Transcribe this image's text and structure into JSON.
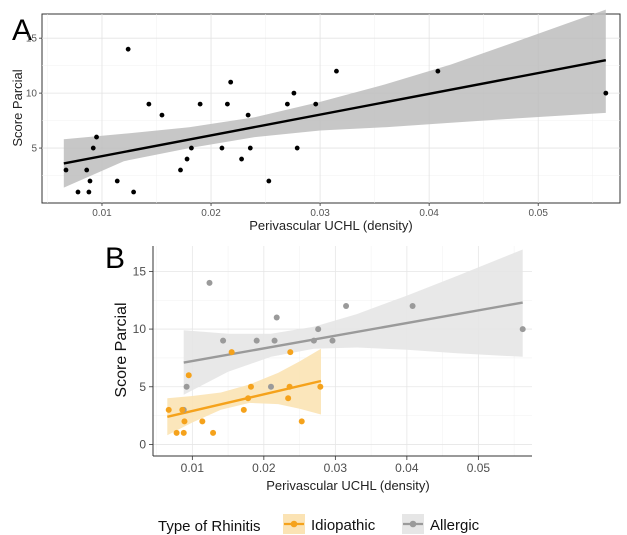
{
  "chart_data": [
    {
      "panel": "A",
      "type": "scatter",
      "panel_label": "A",
      "xlabel": "Perivascular UCHL (density)",
      "ylabel": "Score Parcial",
      "xlim": [
        0.0045,
        0.0575
      ],
      "ylim": [
        0,
        17.2
      ],
      "x_ticks": [
        0.01,
        0.02,
        0.03,
        0.04,
        0.05
      ],
      "x_tick_labels": [
        "0.01",
        "0.02",
        "0.03",
        "0.04",
        "0.05"
      ],
      "y_ticks": [
        5,
        10,
        15
      ],
      "y_tick_labels": [
        "5",
        "10",
        "15"
      ],
      "grid": true,
      "point_color": "#000000",
      "points": [
        {
          "x": 0.0067,
          "y": 3
        },
        {
          "x": 0.0078,
          "y": 1
        },
        {
          "x": 0.0086,
          "y": 3
        },
        {
          "x": 0.0088,
          "y": 1
        },
        {
          "x": 0.0089,
          "y": 2
        },
        {
          "x": 0.0092,
          "y": 5
        },
        {
          "x": 0.0095,
          "y": 6
        },
        {
          "x": 0.0114,
          "y": 2
        },
        {
          "x": 0.0124,
          "y": 14
        },
        {
          "x": 0.0129,
          "y": 1
        },
        {
          "x": 0.0143,
          "y": 9
        },
        {
          "x": 0.0155,
          "y": 8
        },
        {
          "x": 0.0172,
          "y": 3
        },
        {
          "x": 0.0178,
          "y": 4
        },
        {
          "x": 0.0182,
          "y": 5
        },
        {
          "x": 0.019,
          "y": 9
        },
        {
          "x": 0.021,
          "y": 5
        },
        {
          "x": 0.0215,
          "y": 9
        },
        {
          "x": 0.0218,
          "y": 11
        },
        {
          "x": 0.0228,
          "y": 4
        },
        {
          "x": 0.0234,
          "y": 8
        },
        {
          "x": 0.0236,
          "y": 5
        },
        {
          "x": 0.0253,
          "y": 2
        },
        {
          "x": 0.027,
          "y": 9
        },
        {
          "x": 0.0276,
          "y": 10
        },
        {
          "x": 0.0279,
          "y": 5
        },
        {
          "x": 0.0296,
          "y": 9
        },
        {
          "x": 0.0315,
          "y": 12
        },
        {
          "x": 0.0408,
          "y": 12
        },
        {
          "x": 0.0562,
          "y": 10
        }
      ],
      "fit": {
        "x": [
          0.0065,
          0.0562
        ],
        "y": [
          3.6,
          13.0
        ],
        "color": "#000000"
      },
      "ci": {
        "x": [
          0.0065,
          0.012,
          0.018,
          0.024,
          0.03,
          0.036,
          0.042,
          0.048,
          0.0562
        ],
        "lower": [
          1.4,
          3.8,
          5.0,
          6.0,
          6.6,
          6.9,
          7.3,
          7.7,
          8.2
        ],
        "upper": [
          5.8,
          6.3,
          6.9,
          7.8,
          9.2,
          10.8,
          12.6,
          14.7,
          17.6
        ],
        "color": "#bdbdbd"
      }
    },
    {
      "panel": "B",
      "type": "scatter",
      "panel_label": "B",
      "xlabel": "Perivascular UCHL (density)",
      "ylabel": "Score Parcial",
      "xlim": [
        0.0045,
        0.0575
      ],
      "ylim": [
        -1,
        17.2
      ],
      "x_ticks": [
        0.01,
        0.02,
        0.03,
        0.04,
        0.05
      ],
      "x_tick_labels": [
        "0.01",
        "0.02",
        "0.03",
        "0.04",
        "0.05"
      ],
      "y_ticks": [
        0,
        5,
        10,
        15
      ],
      "y_tick_labels": [
        "0",
        "5",
        "10",
        "15"
      ],
      "grid": true,
      "legend": {
        "title": "Type of Rhinitis",
        "placement": "bottom",
        "entries": [
          "Idiopathic",
          "Allergic"
        ]
      },
      "series": [
        {
          "name": "Idiopathic",
          "color": "#f5a21b",
          "ci_color": "#fbe3b4",
          "points": [
            {
              "x": 0.0067,
              "y": 3
            },
            {
              "x": 0.0078,
              "y": 1
            },
            {
              "x": 0.0086,
              "y": 3
            },
            {
              "x": 0.0088,
              "y": 1
            },
            {
              "x": 0.0089,
              "y": 2
            },
            {
              "x": 0.0095,
              "y": 6
            },
            {
              "x": 0.0114,
              "y": 2
            },
            {
              "x": 0.0129,
              "y": 1
            },
            {
              "x": 0.0155,
              "y": 8
            },
            {
              "x": 0.0178,
              "y": 4
            },
            {
              "x": 0.0182,
              "y": 5
            },
            {
              "x": 0.0172,
              "y": 3
            },
            {
              "x": 0.0236,
              "y": 5
            },
            {
              "x": 0.0234,
              "y": 4
            },
            {
              "x": 0.0237,
              "y": 8
            },
            {
              "x": 0.0253,
              "y": 2
            },
            {
              "x": 0.0279,
              "y": 5
            }
          ],
          "fit": {
            "x": [
              0.0065,
              0.028
            ],
            "y": [
              2.4,
              5.5
            ]
          },
          "ci": {
            "x": [
              0.0065,
              0.01,
              0.014,
              0.018,
              0.022,
              0.025,
              0.028
            ],
            "lower": [
              0.8,
              1.9,
              3.0,
              3.6,
              3.5,
              3.1,
              2.6
            ],
            "upper": [
              4.0,
              4.2,
              4.5,
              5.2,
              6.2,
              7.2,
              8.3
            ]
          }
        },
        {
          "name": "Allergic",
          "color": "#9a9a9a",
          "ci_color": "#e6e6e6",
          "points": [
            {
              "x": 0.0088,
              "y": 3
            },
            {
              "x": 0.0092,
              "y": 5
            },
            {
              "x": 0.0124,
              "y": 14
            },
            {
              "x": 0.0143,
              "y": 9
            },
            {
              "x": 0.019,
              "y": 9
            },
            {
              "x": 0.021,
              "y": 5
            },
            {
              "x": 0.0215,
              "y": 9
            },
            {
              "x": 0.0218,
              "y": 11
            },
            {
              "x": 0.027,
              "y": 9
            },
            {
              "x": 0.0276,
              "y": 10
            },
            {
              "x": 0.0296,
              "y": 9
            },
            {
              "x": 0.0315,
              "y": 12
            },
            {
              "x": 0.0408,
              "y": 12
            },
            {
              "x": 0.0562,
              "y": 10
            }
          ],
          "fit": {
            "x": [
              0.0088,
              0.0562
            ],
            "y": [
              7.1,
              12.3
            ]
          },
          "ci": {
            "x": [
              0.0088,
              0.015,
              0.021,
              0.027,
              0.033,
              0.04,
              0.047,
              0.0562
            ],
            "lower": [
              4.3,
              6.3,
              7.6,
              8.3,
              8.4,
              8.2,
              7.9,
              7.6
            ],
            "upper": [
              9.9,
              9.6,
              9.6,
              10.2,
              11.3,
              12.9,
              14.6,
              16.9
            ]
          }
        }
      ]
    }
  ]
}
